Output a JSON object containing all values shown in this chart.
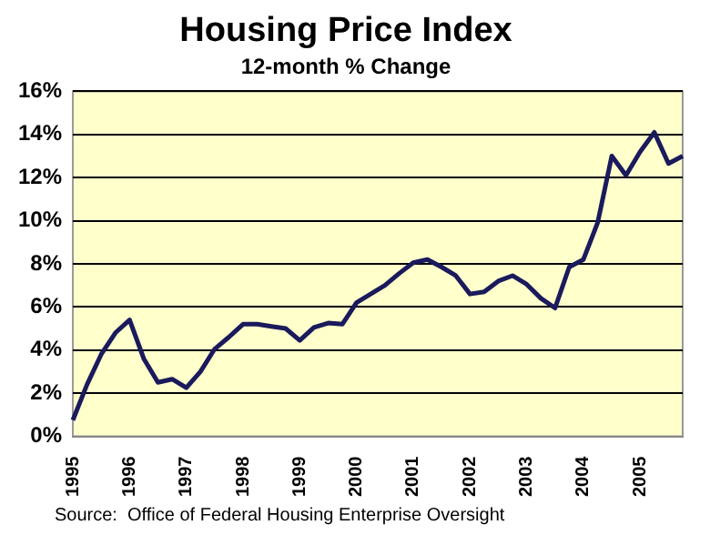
{
  "chart_data": {
    "type": "line",
    "title": "Housing Price Index",
    "subtitle": "12-month % Change",
    "categories": [
      "1995",
      null,
      null,
      null,
      "1996",
      null,
      null,
      null,
      "1997",
      null,
      null,
      null,
      "1998",
      null,
      null,
      null,
      "1999",
      null,
      null,
      null,
      "2000",
      null,
      null,
      null,
      "2001",
      null,
      null,
      null,
      "2002",
      null,
      null,
      null,
      "2003",
      null,
      null,
      null,
      "2004",
      null,
      null,
      null,
      "2005",
      null,
      null,
      null
    ],
    "series": [
      {
        "color": "#1a1a5c",
        "values": [
          0.75,
          2.4,
          3.8,
          4.8,
          5.4,
          3.6,
          2.5,
          2.65,
          2.25,
          3.0,
          4.05,
          4.6,
          5.2,
          5.2,
          5.1,
          5.0,
          4.45,
          5.05,
          5.25,
          5.2,
          6.2,
          6.6,
          7.0,
          7.55,
          8.05,
          8.2,
          7.85,
          7.45,
          6.6,
          6.7,
          7.2,
          7.45,
          7.05,
          6.4,
          5.95,
          7.85,
          8.2,
          9.9,
          13.0,
          12.1,
          13.2,
          14.1,
          12.65,
          13.0
        ]
      }
    ],
    "ylim": [
      0,
      16
    ],
    "yticks": [
      {
        "value": 0,
        "label": "0%"
      },
      {
        "value": 2,
        "label": "2%"
      },
      {
        "value": 4,
        "label": "4%"
      },
      {
        "value": 6,
        "label": "6%"
      },
      {
        "value": 8,
        "label": "8%"
      },
      {
        "value": 10,
        "label": "10%"
      },
      {
        "value": 12,
        "label": "12%"
      },
      {
        "value": 14,
        "label": "14%"
      },
      {
        "value": 16,
        "label": "16%"
      }
    ],
    "grid": "y",
    "legend": false,
    "marker": "none",
    "line_style": "solid",
    "annotations": [
      "Source:  Office of Federal Housing Enterprise Oversight"
    ]
  }
}
